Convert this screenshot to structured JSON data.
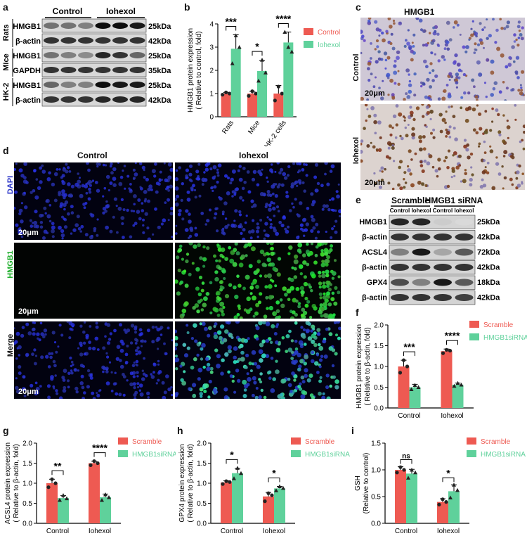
{
  "panels": {
    "a": {
      "letter": "a",
      "groups": [
        "Control",
        "Iohexol"
      ],
      "species": [
        "Rats",
        "Mice",
        "HK-2"
      ],
      "rows": [
        {
          "protein": "HMGB1",
          "size": "25kDa",
          "species_idx": 0,
          "intensities": [
            0.55,
            0.55,
            0.5,
            0.95,
            0.95,
            0.9
          ]
        },
        {
          "protein": "β-actin",
          "size": "42kDa",
          "species_idx": 0,
          "intensities": [
            0.8,
            0.8,
            0.8,
            0.8,
            0.8,
            0.8
          ]
        },
        {
          "protein": "HMGB1",
          "size": "25kDa",
          "species_idx": 1,
          "intensities": [
            0.55,
            0.5,
            0.45,
            0.85,
            0.8,
            0.6
          ]
        },
        {
          "protein": "GAPDH",
          "size": "35kDa",
          "species_idx": 1,
          "intensities": [
            0.8,
            0.8,
            0.8,
            0.8,
            0.8,
            0.8
          ]
        },
        {
          "protein": "HMGB1",
          "size": "25kDa",
          "species_idx": 2,
          "intensities": [
            0.6,
            0.5,
            0.5,
            0.95,
            0.9,
            0.9
          ]
        },
        {
          "protein": "β-actin",
          "size": "42kDa",
          "species_idx": 2,
          "intensities": [
            0.8,
            0.8,
            0.8,
            0.85,
            0.85,
            0.85
          ]
        }
      ]
    },
    "c": {
      "letter": "c",
      "title": "HMGB1",
      "row_labels": [
        "Control",
        "Iohexol"
      ],
      "scale": "20μm"
    },
    "d": {
      "letter": "d",
      "col_labels": [
        "Control",
        "Iohexol"
      ],
      "row_labels": [
        "DAPI",
        "HMGB1",
        "Merge"
      ],
      "scale": "20μm"
    },
    "e": {
      "letter": "e",
      "groups": [
        "Scramble",
        "HMGB1 siRNA"
      ],
      "subgroups": [
        "Control",
        "Iohexol",
        "Control",
        "Iohexol"
      ],
      "rows": [
        {
          "protein": "HMGB1",
          "size": "25kDa",
          "intensities": [
            0.85,
            0.85,
            0.2,
            0.15
          ]
        },
        {
          "protein": "β-actin",
          "size": "42kDa",
          "intensities": [
            0.8,
            0.8,
            0.8,
            0.8
          ]
        },
        {
          "protein": "ACSL4",
          "size": "72kDa",
          "intensities": [
            0.5,
            0.9,
            0.35,
            0.65
          ]
        },
        {
          "protein": "β-actin",
          "size": "42kDa",
          "intensities": [
            0.8,
            0.8,
            0.8,
            0.8
          ]
        },
        {
          "protein": "GPX4",
          "size": "18kDa",
          "intensities": [
            0.7,
            0.5,
            0.9,
            0.65
          ]
        },
        {
          "protein": "β-actin",
          "size": "42kDa",
          "intensities": [
            0.8,
            0.8,
            0.8,
            0.75
          ]
        }
      ]
    }
  },
  "chart_data": [
    {
      "id": "b",
      "letter": "b",
      "type": "bar",
      "categories": [
        "Rats",
        "Mice",
        "HK-2 cells"
      ],
      "series": [
        {
          "name": "Control",
          "color": "#ee5a52",
          "values": [
            1.0,
            1.0,
            1.0
          ],
          "errors": [
            0.05,
            0.1,
            0.35
          ],
          "points": [
            [
              0.95,
              1.05,
              1.0
            ],
            [
              0.9,
              1.1,
              1.0
            ],
            [
              0.7,
              1.3,
              1.0
            ]
          ]
        },
        {
          "name": "Iohexol",
          "color": "#5fd19b",
          "values": [
            2.93,
            1.97,
            3.2
          ],
          "errors": [
            0.6,
            0.45,
            0.45
          ],
          "points": [
            [
              2.3,
              3.5,
              3.0
            ],
            [
              1.55,
              2.45,
              1.9
            ],
            [
              3.65,
              3.0,
              2.8
            ]
          ]
        }
      ],
      "ylabel": [
        "HMGB1 protein expression",
        "( Relative to control, fold)"
      ],
      "ylim": [
        0,
        4
      ],
      "yticks": [
        0,
        1,
        2,
        3,
        4
      ],
      "significance": [
        "***",
        "*",
        "****"
      ],
      "legend": "right",
      "xrotate": true
    },
    {
      "id": "f",
      "letter": "f",
      "type": "bar",
      "categories": [
        "Control",
        "Iohexol"
      ],
      "series": [
        {
          "name": "Scramble",
          "color": "#ee5a52",
          "values": [
            1.0,
            1.37
          ],
          "errors": [
            0.15,
            0.05
          ],
          "points": [
            [
              0.85,
              1.15,
              1.0
            ],
            [
              1.32,
              1.4,
              1.38
            ]
          ]
        },
        {
          "name": "HMGB1siRNA",
          "color": "#5fd19b",
          "values": [
            0.5,
            0.56
          ],
          "errors": [
            0.07,
            0.04
          ],
          "points": [
            [
              0.45,
              0.55,
              0.5
            ],
            [
              0.53,
              0.6,
              0.56
            ]
          ]
        }
      ],
      "ylabel": [
        "HMGB1 protein expression",
        "( Relative to β-actin, fold)"
      ],
      "ylim": [
        0,
        2
      ],
      "yticks": [
        0,
        0.5,
        1.0,
        1.5,
        2.0
      ],
      "significance": [
        "***",
        "****"
      ],
      "legend": "right"
    },
    {
      "id": "g",
      "letter": "g",
      "type": "bar",
      "categories": [
        "Control",
        "Iohexol"
      ],
      "series": [
        {
          "name": "Scramble",
          "color": "#ee5a52",
          "values": [
            1.0,
            1.5
          ],
          "errors": [
            0.1,
            0.05
          ],
          "points": [
            [
              0.9,
              1.1,
              1.0
            ],
            [
              1.45,
              1.55,
              1.5
            ]
          ]
        },
        {
          "name": "HMGB1siRNA",
          "color": "#5fd19b",
          "values": [
            0.63,
            0.65
          ],
          "errors": [
            0.06,
            0.08
          ],
          "points": [
            [
              0.58,
              0.7,
              0.62
            ],
            [
              0.58,
              0.72,
              0.65
            ]
          ]
        }
      ],
      "ylabel": [
        "ACSL4 protein expression",
        "( Relative to β-actin, fold)"
      ],
      "ylim": [
        0,
        2
      ],
      "yticks": [
        0,
        0.5,
        1.0,
        1.5,
        2.0
      ],
      "significance": [
        "**",
        "****"
      ],
      "legend": "right"
    },
    {
      "id": "h",
      "letter": "h",
      "type": "bar",
      "categories": [
        "Control",
        "Iohexol"
      ],
      "series": [
        {
          "name": "Scramble",
          "color": "#ee5a52",
          "values": [
            1.02,
            0.67
          ],
          "errors": [
            0.04,
            0.1
          ],
          "points": [
            [
              0.98,
              1.05,
              1.03
            ],
            [
              0.55,
              0.75,
              0.7
            ]
          ]
        },
        {
          "name": "HMGB1siRNA",
          "color": "#5fd19b",
          "values": [
            1.25,
            0.87
          ],
          "errors": [
            0.12,
            0.05
          ],
          "points": [
            [
              1.12,
              1.38,
              1.25
            ],
            [
              0.82,
              0.92,
              0.88
            ]
          ]
        }
      ],
      "ylabel": [
        "GPX4 protein expression",
        "( Relative to β-actin, fold)"
      ],
      "ylim": [
        0,
        2
      ],
      "yticks": [
        0,
        0.5,
        1.0,
        1.5,
        2.0
      ],
      "significance": [
        "*",
        "*"
      ],
      "legend": "right"
    },
    {
      "id": "i",
      "letter": "i",
      "type": "bar",
      "categories": [
        "Control",
        "Iohexol"
      ],
      "series": [
        {
          "name": "Scramble",
          "color": "#ee5a52",
          "values": [
            1.0,
            0.4
          ],
          "errors": [
            0.06,
            0.06
          ],
          "points": [
            [
              0.95,
              1.05,
              1.0
            ],
            [
              0.35,
              0.45,
              0.4
            ]
          ]
        },
        {
          "name": "HMGB1siRNA",
          "color": "#5fd19b",
          "values": [
            0.93,
            0.6
          ],
          "errors": [
            0.08,
            0.12
          ],
          "points": [
            [
              0.85,
              1.0,
              0.95
            ],
            [
              0.48,
              0.72,
              0.62
            ]
          ]
        }
      ],
      "ylabel": [
        "GSH",
        "(Relative to control)"
      ],
      "ylim": [
        0,
        1.5
      ],
      "yticks": [
        0,
        0.5,
        1.0,
        1.5
      ],
      "significance": [
        "ns",
        "*"
      ],
      "legend": "right"
    }
  ]
}
